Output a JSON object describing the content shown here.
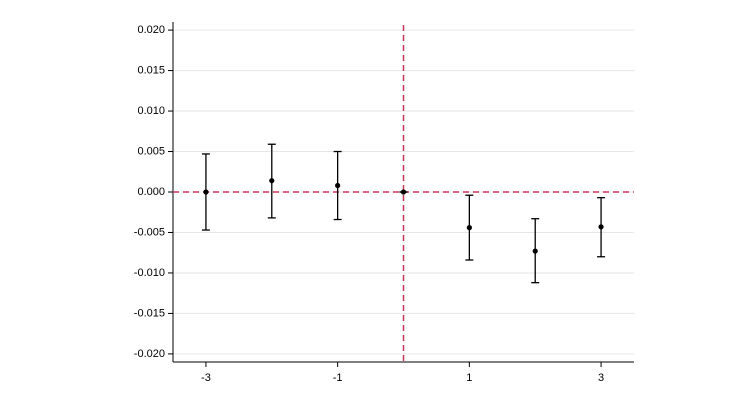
{
  "chart_data": {
    "type": "errorbar",
    "x": [
      -3,
      -2,
      -1,
      0,
      1,
      2,
      3
    ],
    "values": [
      0,
      0.0014,
      0.0008,
      0,
      -0.0044,
      -0.0073,
      -0.0043
    ],
    "lower": [
      -0.0047,
      -0.0032,
      -0.0034,
      0,
      -0.0084,
      -0.0112,
      -0.008
    ],
    "upper": [
      0.0047,
      0.0059,
      0.005,
      0,
      -0.0004,
      -0.0033,
      -0.0007
    ],
    "color": "#000000",
    "xlim": [
      -3.5,
      3.5
    ],
    "xticks": [
      -3,
      -1,
      1,
      3
    ],
    "ylim": [
      -0.021,
      0.021
    ],
    "yticks": [
      {
        "value": -0.02,
        "label": "-0.020"
      },
      {
        "value": -0.015,
        "label": "-0.015"
      },
      {
        "value": -0.01,
        "label": "-0.010"
      },
      {
        "value": -0.005,
        "label": "-0.005"
      },
      {
        "value": 0,
        "label": "0.000"
      },
      {
        "value": 0.005,
        "label": "0.005"
      },
      {
        "value": 0.01,
        "label": "0.010"
      },
      {
        "value": 0.015,
        "label": "0.015"
      },
      {
        "value": 0.02,
        "label": "0.020"
      }
    ],
    "grid": true,
    "hline": 0,
    "vline": 0,
    "ref_color": "#c8375a"
  }
}
